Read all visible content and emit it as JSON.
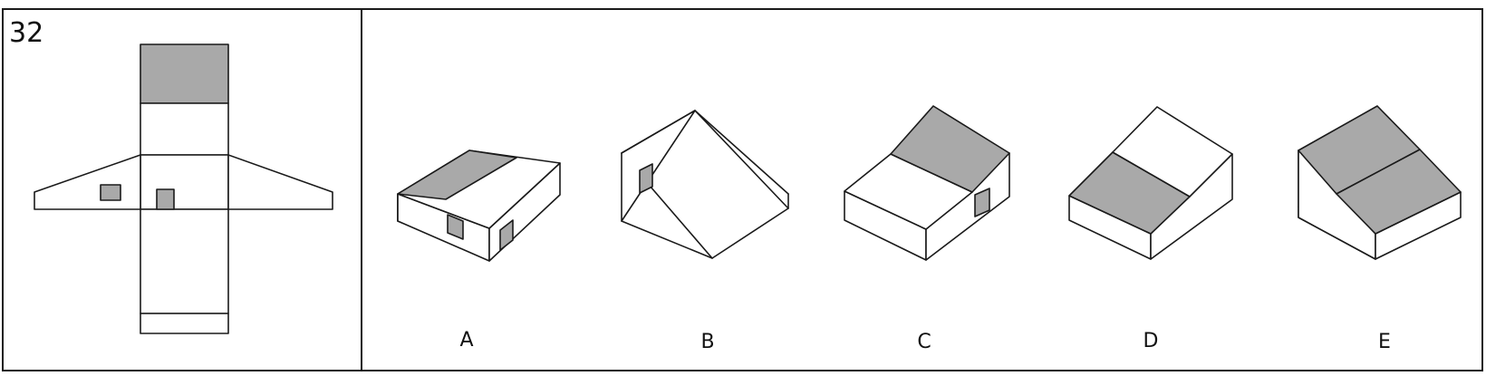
{
  "question": {
    "number": "32"
  },
  "options": [
    {
      "label": "A"
    },
    {
      "label": "B"
    },
    {
      "label": "C"
    },
    {
      "label": "D"
    },
    {
      "label": "E"
    }
  ],
  "colors": {
    "shade": "#a9a9a9",
    "line": "#1a1a1a",
    "background": "#ffffff"
  }
}
